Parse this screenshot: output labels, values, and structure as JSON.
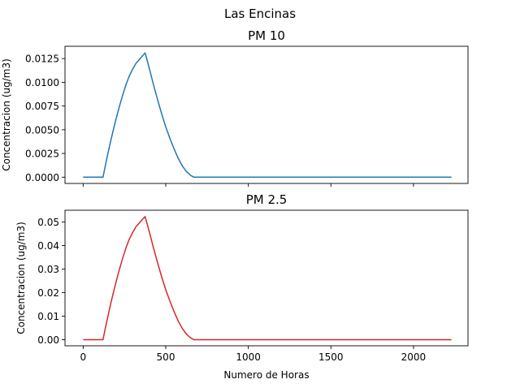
{
  "figure": {
    "suptitle": "Las Encinas"
  },
  "chart_data": [
    {
      "type": "line",
      "title": "PM 10",
      "xlabel": "",
      "ylabel": "Concentracion (ug/m3)",
      "xlim": [
        -110,
        2330
      ],
      "ylim": [
        -0.00066,
        0.0138
      ],
      "xticks": [
        0,
        500,
        1000,
        1500,
        2000
      ],
      "xtick_labels_visible": false,
      "yticks": [
        0.0,
        0.0025,
        0.005,
        0.0075,
        0.01,
        0.0125
      ],
      "ytick_labels": [
        "0.0000",
        "0.0025",
        "0.0050",
        "0.0075",
        "0.0100",
        "0.0125"
      ],
      "series": [
        {
          "color": "#1f77b4",
          "x": [
            0,
            120,
            140,
            160,
            180,
            200,
            220,
            240,
            260,
            280,
            300,
            320,
            340,
            360,
            375,
            400,
            425,
            450,
            475,
            500,
            525,
            550,
            575,
            600,
            625,
            650,
            670,
            2230
          ],
          "y": [
            0,
            0,
            0.0017,
            0.0033,
            0.0048,
            0.0062,
            0.0075,
            0.0087,
            0.0098,
            0.0107,
            0.0114,
            0.012,
            0.0124,
            0.0128,
            0.0131,
            0.0115,
            0.0098,
            0.0082,
            0.0067,
            0.0053,
            0.0041,
            0.003,
            0.002,
            0.0012,
            0.0006,
            0.0002,
            0,
            0
          ]
        }
      ]
    },
    {
      "type": "line",
      "title": "PM 2.5",
      "xlabel": "Numero de Horas",
      "ylabel": "Concentracion (ug/m3)",
      "xlim": [
        -110,
        2330
      ],
      "ylim": [
        -0.0026,
        0.055
      ],
      "xticks": [
        0,
        500,
        1000,
        1500,
        2000
      ],
      "xtick_labels": [
        "0",
        "500",
        "1000",
        "1500",
        "2000"
      ],
      "xtick_labels_visible": true,
      "yticks": [
        0.0,
        0.01,
        0.02,
        0.03,
        0.04,
        0.05
      ],
      "ytick_labels": [
        "0.00",
        "0.01",
        "0.02",
        "0.03",
        "0.04",
        "0.05"
      ],
      "series": [
        {
          "color": "#d62728",
          "x": [
            0,
            120,
            140,
            160,
            180,
            200,
            220,
            240,
            260,
            280,
            300,
            320,
            340,
            360,
            375,
            400,
            425,
            450,
            475,
            500,
            525,
            550,
            575,
            600,
            625,
            650,
            670,
            2230
          ],
          "y": [
            0,
            0,
            0.0068,
            0.0132,
            0.0192,
            0.0248,
            0.03,
            0.0348,
            0.0392,
            0.0428,
            0.0456,
            0.048,
            0.0496,
            0.0512,
            0.0523,
            0.046,
            0.0392,
            0.0328,
            0.0268,
            0.0212,
            0.0164,
            0.012,
            0.008,
            0.0048,
            0.0024,
            0.0008,
            0,
            0
          ]
        }
      ]
    }
  ]
}
